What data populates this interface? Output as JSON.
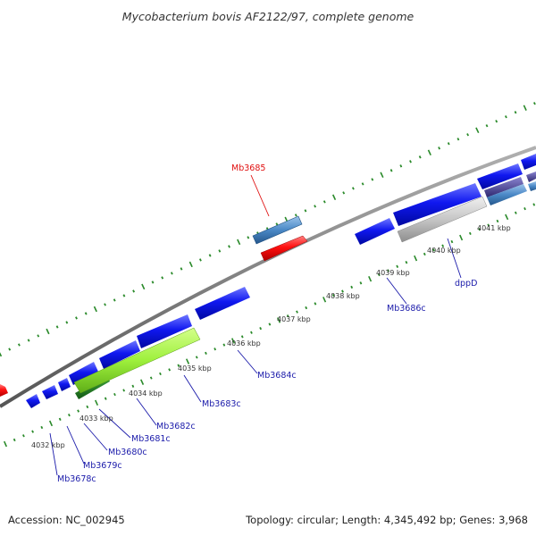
{
  "title": "Mycobacterium bovis AF2122/97, complete genome",
  "footer": {
    "accession": "Accession: NC_002945",
    "summary": "Topology: circular; Length: 4,345,492 bp; Genes: 3,968"
  },
  "colors": {
    "forward_gene": "#0a14e6",
    "reverse_gene": "#0a14e6",
    "highlight_gene": "#ff1a1a",
    "rna_feature": "#4f8fd0",
    "green_feature": "#9ef03c",
    "grey_feature": "#c8c8c8",
    "backbone": "#808080",
    "tick": "#2a8a2a",
    "label_blue": "#1a1aaa",
    "label_red": "#e01010"
  },
  "scale_labels": [
    "4032 kbp",
    "4033 kbp",
    "4034 kbp",
    "4035 kbp",
    "4036 kbp",
    "4037 kbp",
    "4038 kbp",
    "4039 kbp",
    "4040 kbp",
    "4041 kbp"
  ],
  "gene_labels": [
    "Mb3678c",
    "Mb3679c",
    "Mb3680c",
    "Mb3681c",
    "Mb3682c",
    "Mb3683c",
    "Mb3684c",
    "Mb3685",
    "Mb3686c",
    "dppD"
  ]
}
